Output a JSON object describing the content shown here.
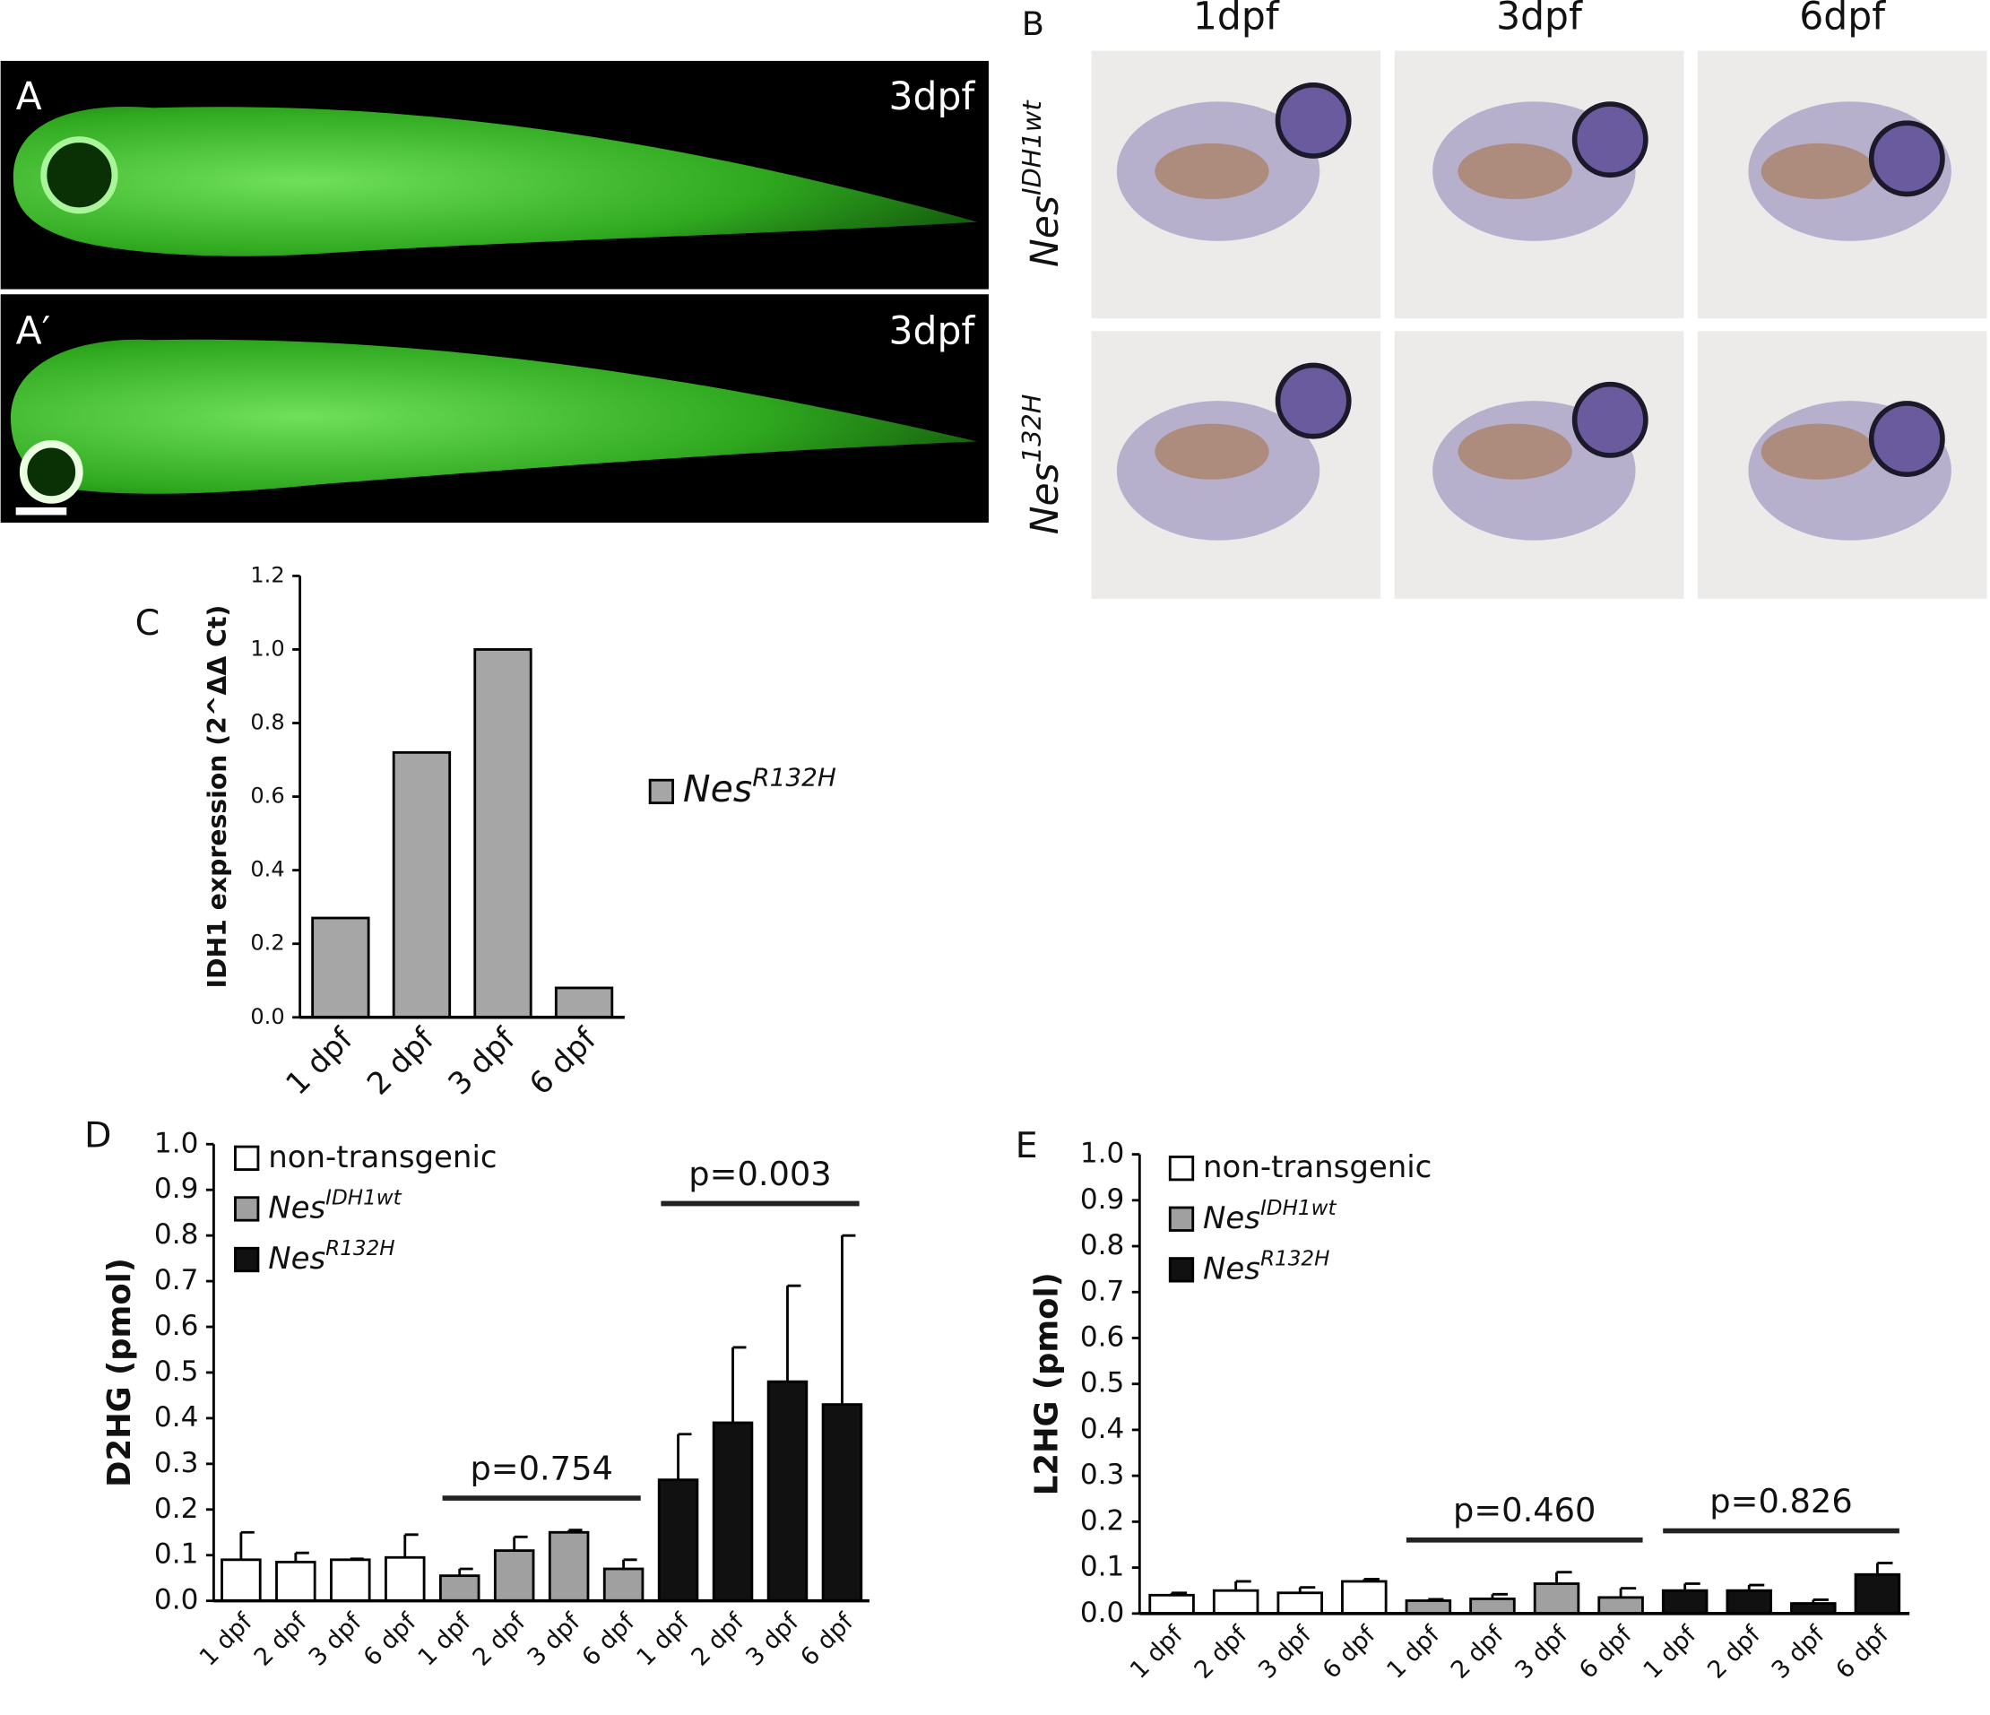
{
  "panels": {
    "A": {
      "label": "A",
      "stage": "3dpf"
    },
    "A_prime": {
      "label": "A′",
      "stage": "3dpf"
    },
    "B": {
      "label": "B",
      "columns": [
        "1dpf",
        "3dpf",
        "6dpf"
      ],
      "rows": [
        {
          "name": "Nes",
          "superscript": "IDH1wt"
        },
        {
          "name": "Nes",
          "superscript": "132H"
        }
      ]
    }
  },
  "chart_data": [
    {
      "type": "bar",
      "panel_label": "C",
      "y_label": "IDH1 expression (2^ΔΔ Ct)",
      "categories": [
        "1 dpf",
        "2 dpf",
        "3 dpf",
        "6 dpf"
      ],
      "series": [
        {
          "name": "Nes",
          "superscript": "R132H",
          "color": "#a6a6a6",
          "values": [
            0.27,
            0.72,
            1.0,
            0.08
          ]
        }
      ],
      "ylim": [
        0,
        1.2
      ],
      "yticks": [
        {
          "value": 0,
          "label": "0.0"
        },
        0.2,
        0.4,
        0.6,
        0.8,
        {
          "value": 1,
          "label": "1.0"
        },
        1.2
      ]
    },
    {
      "type": "bar",
      "panel_label": "D",
      "y_label": "D2HG (pmol)",
      "categories": [
        "1 dpf",
        "2 dpf",
        "3 dpf",
        "6 dpf"
      ],
      "series": [
        {
          "name": "non-transgenic",
          "color": "#ffffff",
          "values": [
            0.09,
            0.085,
            0.09,
            0.095
          ],
          "errors": [
            0.06,
            0.02,
            0.002,
            0.05
          ]
        },
        {
          "name": "Nes",
          "superscript": "IDH1wt",
          "color": "#a0a0a0",
          "values": [
            0.055,
            0.11,
            0.15,
            0.07
          ],
          "errors": [
            0.015,
            0.03,
            0.005,
            0.02
          ]
        },
        {
          "name": "Nes",
          "superscript": "R132H",
          "color": "#111111",
          "values": [
            0.265,
            0.39,
            0.48,
            0.43
          ],
          "errors": [
            0.1,
            0.165,
            0.21,
            0.37
          ]
        }
      ],
      "annotations": [
        "p=0.754",
        "p=0.003"
      ],
      "ylim": [
        0,
        1
      ],
      "yticks": [
        {
          "value": 0,
          "label": "0.0"
        },
        0.1,
        0.2,
        0.3,
        0.4,
        0.5,
        0.6,
        0.7,
        0.8,
        0.9,
        {
          "value": 1,
          "label": "1.0"
        }
      ]
    },
    {
      "type": "bar",
      "panel_label": "E",
      "y_label": "L2HG (pmol)",
      "categories": [
        "1 dpf",
        "2 dpf",
        "3 dpf",
        "6 dpf"
      ],
      "series": [
        {
          "name": "non-transgenic",
          "color": "#ffffff",
          "values": [
            0.04,
            0.05,
            0.045,
            0.07
          ],
          "errors": [
            0.005,
            0.02,
            0.012,
            0.005
          ]
        },
        {
          "name": "Nes",
          "superscript": "IDH1wt",
          "color": "#a0a0a0",
          "values": [
            0.028,
            0.032,
            0.065,
            0.035
          ],
          "errors": [
            0.003,
            0.01,
            0.025,
            0.02
          ]
        },
        {
          "name": "Nes",
          "superscript": "R132H",
          "color": "#111111",
          "values": [
            0.05,
            0.05,
            0.022,
            0.085
          ],
          "errors": [
            0.015,
            0.012,
            0.008,
            0.025
          ]
        }
      ],
      "annotations": [
        "p=0.460",
        "p=0.826"
      ],
      "ylim": [
        0,
        1
      ],
      "yticks": [
        {
          "value": 0,
          "label": "0.0"
        },
        0.1,
        0.2,
        0.3,
        0.4,
        0.5,
        0.6,
        0.7,
        0.8,
        0.9,
        {
          "value": 1,
          "label": "1.0"
        }
      ]
    }
  ]
}
